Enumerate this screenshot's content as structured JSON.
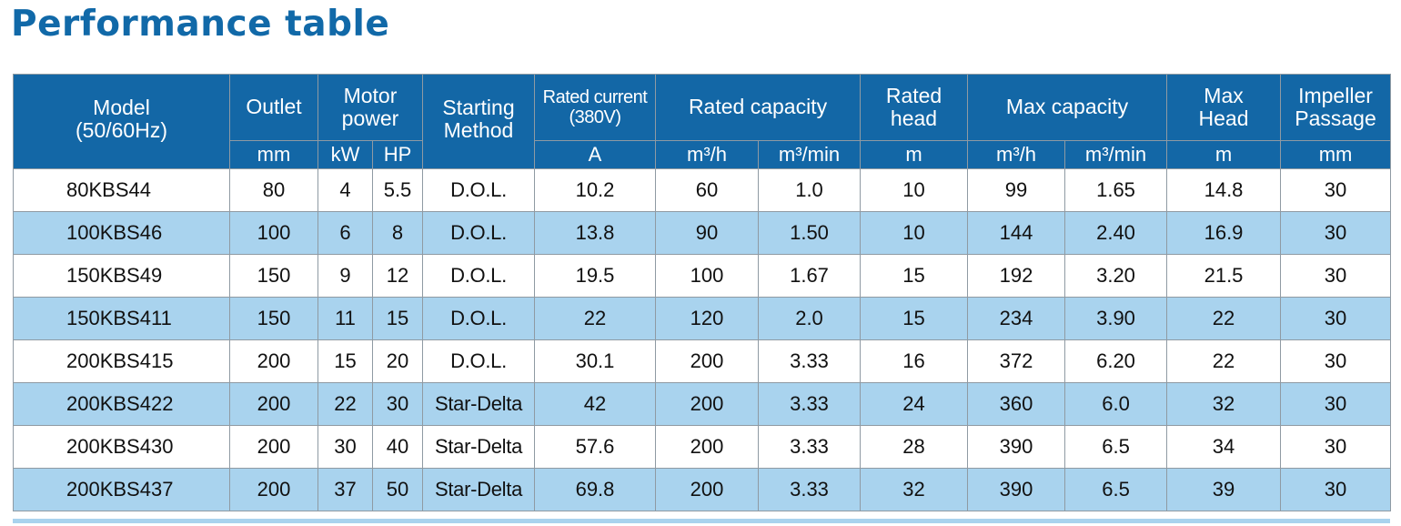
{
  "title": "Performance table",
  "header": {
    "model": "Model\n(50/60Hz)",
    "outlet": "Outlet",
    "motor_power": "Motor\npower",
    "starting_method": "Starting\nMethod",
    "rated_current": "Rated current\n(380V)",
    "rated_capacity": "Rated capacity",
    "rated_head": "Rated\nhead",
    "max_capacity": "Max capacity",
    "max_head": "Max\nHead",
    "impeller_passage": "Impeller\nPassage"
  },
  "units": {
    "outlet": "mm",
    "power_kw": "kW",
    "power_hp": "HP",
    "current": "A",
    "rated_cap_h": "m³/h",
    "rated_cap_min": "m³/min",
    "rated_head": "m",
    "max_cap_h": "m³/h",
    "max_cap_min": "m³/min",
    "max_head": "m",
    "impeller": "mm"
  },
  "rows": [
    {
      "model": "80KBS44",
      "outlet": "80",
      "kw": "4",
      "hp": "5.5",
      "method": "D.O.L.",
      "current": "10.2",
      "rc_h": "60",
      "rc_min": "1.0",
      "head": "10",
      "mc_h": "99",
      "mc_min": "1.65",
      "max_head": "14.8",
      "impeller": "30"
    },
    {
      "model": "100KBS46",
      "outlet": "100",
      "kw": "6",
      "hp": "8",
      "method": "D.O.L.",
      "current": "13.8",
      "rc_h": "90",
      "rc_min": "1.50",
      "head": "10",
      "mc_h": "144",
      "mc_min": "2.40",
      "max_head": "16.9",
      "impeller": "30"
    },
    {
      "model": "150KBS49",
      "outlet": "150",
      "kw": "9",
      "hp": "12",
      "method": "D.O.L.",
      "current": "19.5",
      "rc_h": "100",
      "rc_min": "1.67",
      "head": "15",
      "mc_h": "192",
      "mc_min": "3.20",
      "max_head": "21.5",
      "impeller": "30"
    },
    {
      "model": "150KBS411",
      "outlet": "150",
      "kw": "11",
      "hp": "15",
      "method": "D.O.L.",
      "current": "22",
      "rc_h": "120",
      "rc_min": "2.0",
      "head": "15",
      "mc_h": "234",
      "mc_min": "3.90",
      "max_head": "22",
      "impeller": "30"
    },
    {
      "model": "200KBS415",
      "outlet": "200",
      "kw": "15",
      "hp": "20",
      "method": "D.O.L.",
      "current": "30.1",
      "rc_h": "200",
      "rc_min": "3.33",
      "head": "16",
      "mc_h": "372",
      "mc_min": "6.20",
      "max_head": "22",
      "impeller": "30"
    },
    {
      "model": "200KBS422",
      "outlet": "200",
      "kw": "22",
      "hp": "30",
      "method": "Star-Delta",
      "current": "42",
      "rc_h": "200",
      "rc_min": "3.33",
      "head": "24",
      "mc_h": "360",
      "mc_min": "6.0",
      "max_head": "32",
      "impeller": "30"
    },
    {
      "model": "200KBS430",
      "outlet": "200",
      "kw": "30",
      "hp": "40",
      "method": "Star-Delta",
      "current": "57.6",
      "rc_h": "200",
      "rc_min": "3.33",
      "head": "28",
      "mc_h": "390",
      "mc_min": "6.5",
      "max_head": "34",
      "impeller": "30"
    },
    {
      "model": "200KBS437",
      "outlet": "200",
      "kw": "37",
      "hp": "50",
      "method": "Star-Delta",
      "current": "69.8",
      "rc_h": "200",
      "rc_min": "3.33",
      "head": "32",
      "mc_h": "390",
      "mc_min": "6.5",
      "max_head": "39",
      "impeller": "30"
    }
  ]
}
